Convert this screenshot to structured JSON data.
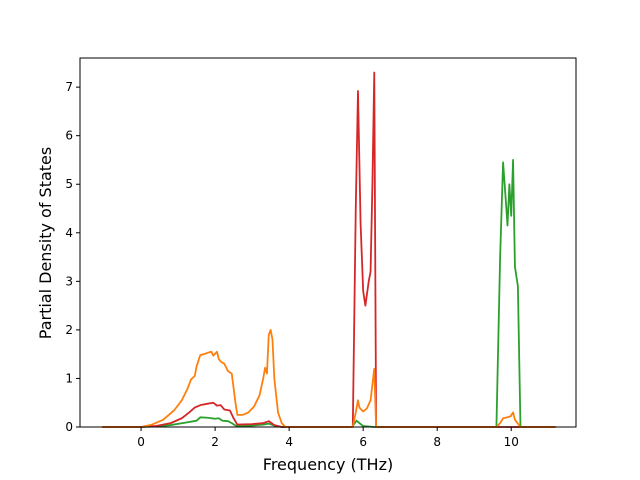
{
  "chart_data": {
    "type": "line",
    "title": "",
    "xlabel": "Frequency (THz)",
    "ylabel": "Partial Density of States",
    "xlim": [
      -1.65,
      11.75
    ],
    "ylim": [
      0,
      7.6
    ],
    "xticks": [
      0,
      2,
      4,
      6,
      8,
      10
    ],
    "yticks": [
      0,
      1,
      2,
      3,
      4,
      5,
      6,
      7
    ],
    "grid": false,
    "legend": "none",
    "series": [
      {
        "color": "#2ca02c",
        "points": [
          [
            -1.05,
            0
          ],
          [
            0,
            0
          ],
          [
            0.4,
            0.01
          ],
          [
            0.8,
            0.04
          ],
          [
            1.2,
            0.09
          ],
          [
            1.5,
            0.13
          ],
          [
            1.6,
            0.2
          ],
          [
            1.8,
            0.19
          ],
          [
            2.0,
            0.17
          ],
          [
            2.1,
            0.18
          ],
          [
            2.2,
            0.13
          ],
          [
            2.35,
            0.12
          ],
          [
            2.45,
            0.08
          ],
          [
            2.55,
            0.03
          ],
          [
            2.7,
            0.02
          ],
          [
            3.0,
            0.03
          ],
          [
            3.3,
            0.05
          ],
          [
            3.45,
            0.07
          ],
          [
            3.6,
            0.03
          ],
          [
            3.8,
            0
          ],
          [
            5.7,
            0
          ],
          [
            5.82,
            0.13
          ],
          [
            5.9,
            0.08
          ],
          [
            6.0,
            0.02
          ],
          [
            6.3,
            0
          ],
          [
            9.6,
            0
          ],
          [
            9.7,
            3.5
          ],
          [
            9.78,
            5.45
          ],
          [
            9.85,
            4.7
          ],
          [
            9.9,
            4.15
          ],
          [
            9.95,
            5.0
          ],
          [
            10.0,
            4.35
          ],
          [
            10.05,
            5.5
          ],
          [
            10.1,
            3.3
          ],
          [
            10.18,
            2.9
          ],
          [
            10.25,
            0
          ],
          [
            11.2,
            0
          ]
        ]
      },
      {
        "color": "#d62728",
        "points": [
          [
            -1.05,
            0
          ],
          [
            0,
            0
          ],
          [
            0.4,
            0.02
          ],
          [
            0.8,
            0.08
          ],
          [
            1.1,
            0.18
          ],
          [
            1.3,
            0.3
          ],
          [
            1.45,
            0.4
          ],
          [
            1.6,
            0.45
          ],
          [
            1.8,
            0.48
          ],
          [
            1.95,
            0.5
          ],
          [
            2.05,
            0.44
          ],
          [
            2.15,
            0.45
          ],
          [
            2.25,
            0.36
          ],
          [
            2.4,
            0.34
          ],
          [
            2.5,
            0.18
          ],
          [
            2.6,
            0.05
          ],
          [
            3.0,
            0.06
          ],
          [
            3.3,
            0.08
          ],
          [
            3.45,
            0.12
          ],
          [
            3.6,
            0.04
          ],
          [
            3.8,
            0
          ],
          [
            5.72,
            0
          ],
          [
            5.8,
            4.5
          ],
          [
            5.86,
            6.92
          ],
          [
            5.93,
            4.2
          ],
          [
            6.0,
            2.8
          ],
          [
            6.06,
            2.5
          ],
          [
            6.15,
            3.0
          ],
          [
            6.2,
            3.2
          ],
          [
            6.25,
            5.0
          ],
          [
            6.3,
            7.3
          ],
          [
            6.35,
            0
          ],
          [
            11.2,
            0
          ]
        ]
      },
      {
        "color": "#ff7f0e",
        "points": [
          [
            -1.05,
            0
          ],
          [
            0,
            0
          ],
          [
            0.3,
            0.05
          ],
          [
            0.6,
            0.15
          ],
          [
            0.9,
            0.35
          ],
          [
            1.1,
            0.55
          ],
          [
            1.25,
            0.78
          ],
          [
            1.35,
            0.98
          ],
          [
            1.45,
            1.05
          ],
          [
            1.5,
            1.25
          ],
          [
            1.6,
            1.48
          ],
          [
            1.7,
            1.5
          ],
          [
            1.8,
            1.53
          ],
          [
            1.9,
            1.55
          ],
          [
            1.95,
            1.47
          ],
          [
            2.05,
            1.55
          ],
          [
            2.1,
            1.4
          ],
          [
            2.15,
            1.35
          ],
          [
            2.25,
            1.3
          ],
          [
            2.35,
            1.15
          ],
          [
            2.45,
            1.1
          ],
          [
            2.5,
            0.8
          ],
          [
            2.55,
            0.5
          ],
          [
            2.6,
            0.25
          ],
          [
            2.75,
            0.25
          ],
          [
            2.9,
            0.3
          ],
          [
            3.05,
            0.42
          ],
          [
            3.2,
            0.65
          ],
          [
            3.3,
            1.0
          ],
          [
            3.35,
            1.22
          ],
          [
            3.4,
            1.1
          ],
          [
            3.45,
            1.9
          ],
          [
            3.5,
            2.0
          ],
          [
            3.55,
            1.8
          ],
          [
            3.6,
            1.0
          ],
          [
            3.7,
            0.3
          ],
          [
            3.8,
            0.08
          ],
          [
            3.9,
            0
          ],
          [
            5.72,
            0
          ],
          [
            5.8,
            0.3
          ],
          [
            5.86,
            0.55
          ],
          [
            5.9,
            0.4
          ],
          [
            6.0,
            0.32
          ],
          [
            6.1,
            0.38
          ],
          [
            6.2,
            0.55
          ],
          [
            6.3,
            1.2
          ],
          [
            6.35,
            0
          ],
          [
            9.6,
            0
          ],
          [
            9.7,
            0.08
          ],
          [
            9.78,
            0.18
          ],
          [
            9.9,
            0.2
          ],
          [
            9.98,
            0.22
          ],
          [
            10.05,
            0.3
          ],
          [
            10.1,
            0.15
          ],
          [
            10.25,
            0
          ],
          [
            11.2,
            0
          ]
        ]
      }
    ]
  }
}
